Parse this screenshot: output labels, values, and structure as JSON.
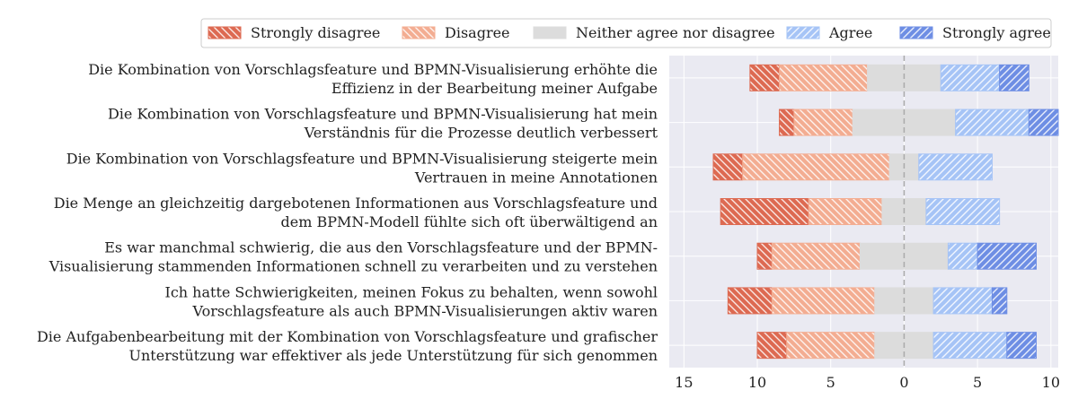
{
  "chart_data": {
    "type": "bar",
    "subtype": "diverging-stacked-likert",
    "title": "",
    "xlabel": "",
    "ylabel": "",
    "xlim": [
      -16,
      10.5
    ],
    "x_ticks": [
      -15,
      -10,
      -5,
      0,
      5,
      10
    ],
    "x_tick_labels": [
      "15",
      "10",
      "5",
      "0",
      "5",
      "10"
    ],
    "center_line": 0,
    "grid": true,
    "legend_position": "top-right",
    "legend": [
      "Strongly disagree",
      "Disagree",
      "Neither agree nor disagree",
      "Agree",
      "Strongly agree"
    ],
    "colors": {
      "Strongly disagree": "#dd6a52",
      "Disagree": "#f3ad92",
      "Neither agree nor disagree": "#dcdcdc",
      "Agree": "#a6c4f6",
      "Strongly agree": "#6e8ee4",
      "plot_background": "#eaeaf2",
      "grid": "#ffffff",
      "center_line": "#aaaaaa"
    },
    "categories": [
      [
        "Die Kombination von Vorschlagsfeature und BPMN-Visualisierung erhöhte die",
        "Effizienz in der Bearbeitung meiner Aufgabe"
      ],
      [
        "Die Kombination von Vorschlagsfeature und BPMN-Visualisierung hat mein",
        "Verständnis für die Prozesse deutlich verbessert"
      ],
      [
        "Die Kombination von Vorschlagsfeature und BPMN-Visualisierung steigerte mein",
        "Vertrauen in meine Annotationen"
      ],
      [
        "Die Menge an gleichzeitig dargebotenen Informationen aus Vorschlagsfeature und",
        "dem BPMN-Modell fühlte sich oft überwältigend an"
      ],
      [
        "Es war manchmal schwierig, die aus den Vorschlagsfeature und der BPMN-",
        "Visualisierung stammenden Informationen schnell zu verarbeiten und zu verstehen"
      ],
      [
        "Ich hatte Schwierigkeiten, meinen Fokus zu behalten, wenn sowohl",
        "Vorschlagsfeature als auch BPMN-Visualisierungen aktiv waren"
      ],
      [
        "Die Aufgabenbearbeitung mit der Kombination von Vorschlagsfeature und grafischer",
        "Unterstützung war effektiver als jede Unterstützung für sich genommen"
      ]
    ],
    "series": [
      {
        "name": "Strongly disagree",
        "values": [
          2,
          1,
          2,
          6,
          1,
          3,
          2
        ]
      },
      {
        "name": "Disagree",
        "values": [
          6,
          4,
          10,
          5,
          6,
          7,
          6
        ]
      },
      {
        "name": "Neither agree nor disagree",
        "values": [
          5,
          7,
          2,
          3,
          6,
          4,
          4
        ]
      },
      {
        "name": "Agree",
        "values": [
          4,
          5,
          5,
          5,
          2,
          4,
          5
        ]
      },
      {
        "name": "Strongly agree",
        "values": [
          2,
          2,
          0,
          0,
          4,
          1,
          2
        ]
      }
    ]
  }
}
